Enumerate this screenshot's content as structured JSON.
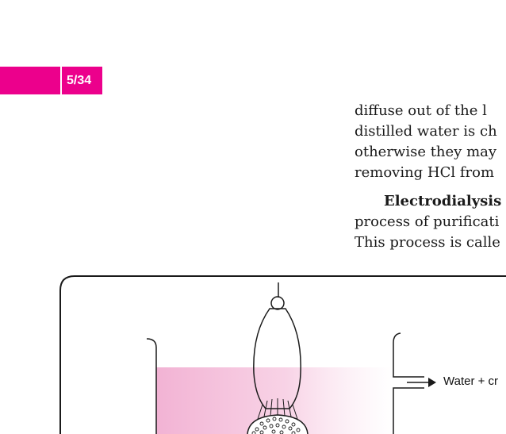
{
  "header": {
    "page_number": "5/34",
    "accent_color": "#ec008c"
  },
  "text": {
    "line1": "diffuse out of the l",
    "line2": "distilled water is ch",
    "line3": "otherwise they may",
    "line4": "removing HCl from",
    "para2_bold": "Electrodialysis",
    "para2_line2": "process of purificati",
    "para2_line3": "This process is calle"
  },
  "figure": {
    "outflow_label": "Water + cr",
    "liquid_color": "#f4b8d8"
  }
}
